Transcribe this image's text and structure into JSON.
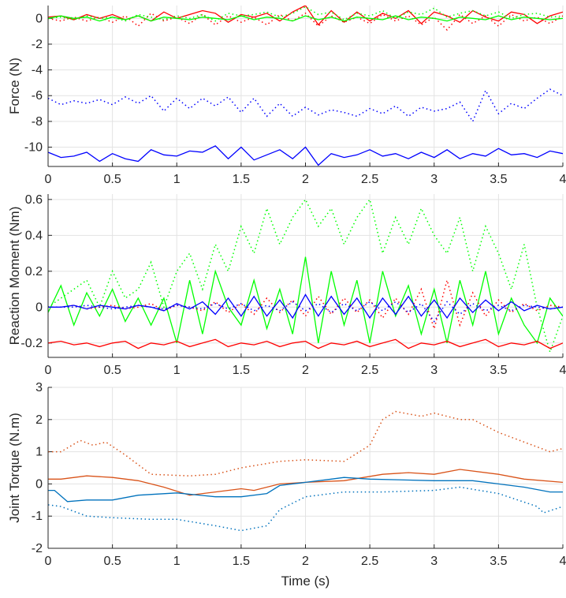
{
  "chart_data": [
    {
      "type": "line",
      "ylabel": "Force (N)",
      "xlabel": "",
      "xlim": [
        0,
        4
      ],
      "ylim": [
        -11.5,
        1
      ],
      "xticks": [
        "0",
        "0.5",
        "1",
        "1.5",
        "2",
        "2.5",
        "3",
        "3.5",
        "4"
      ],
      "yticks": [
        0,
        -2,
        -4,
        -6,
        -8,
        -10
      ],
      "yticklabels": [
        "0",
        "-2",
        "-4",
        "-6",
        "-8",
        "-10"
      ],
      "grid": true,
      "x_step": 0.1,
      "series": [
        {
          "color": "#ff0000",
          "style": "solid",
          "values": [
            0.1,
            0.2,
            -0.1,
            0.3,
            0.0,
            0.3,
            -0.1,
            0.2,
            -0.2,
            0.5,
            0.0,
            0.3,
            0.6,
            0.4,
            -0.3,
            0.3,
            0.1,
            0.4,
            -0.2,
            0.5,
            1.0,
            -0.5,
            0.6,
            -0.3,
            0.5,
            -0.2,
            0.4,
            0.0,
            0.6,
            -0.4,
            0.5,
            0.2,
            -0.3,
            0.6,
            0.1,
            -0.2,
            0.5,
            0.3,
            -0.4,
            0.2,
            0.5
          ]
        },
        {
          "color": "#ff0000",
          "style": "dotted",
          "values": [
            0.0,
            -0.2,
            0.1,
            -0.2,
            0.1,
            -0.3,
            0.2,
            -0.6,
            0.4,
            -0.2,
            0.1,
            -0.4,
            0.3,
            -0.5,
            0.2,
            -0.3,
            0.1,
            -0.5,
            0.3,
            -0.2,
            0.4,
            -0.6,
            0.2,
            -0.3,
            0.1,
            -0.4,
            0.3,
            -0.2,
            0.2,
            -0.5,
            0.1,
            -0.9,
            0.3,
            -0.4,
            0.2,
            -0.6,
            0.3,
            -0.2,
            0.1,
            -0.4,
            0.2
          ]
        },
        {
          "color": "#00ff00",
          "style": "solid",
          "values": [
            0.0,
            0.2,
            0.0,
            0.1,
            -0.2,
            0.1,
            -0.1,
            0.2,
            -0.2,
            0.1,
            0.0,
            -0.1,
            0.1,
            0.0,
            -0.1,
            0.2,
            -0.1,
            0.1,
            0.0,
            -0.2,
            0.2,
            -0.1,
            0.1,
            -0.2,
            0.1,
            0.0,
            -0.1,
            0.2,
            -0.1,
            0.1,
            0.0,
            -0.2,
            0.1,
            0.0,
            -0.1,
            0.2,
            -0.1,
            0.1,
            0.0,
            -0.1,
            0.0
          ]
        },
        {
          "color": "#00ff00",
          "style": "dotted",
          "values": [
            0.0,
            0.1,
            -0.1,
            0.2,
            0.0,
            0.1,
            -0.2,
            0.3,
            0.1,
            -0.1,
            0.2,
            0.0,
            0.3,
            -0.2,
            0.4,
            0.2,
            0.3,
            0.5,
            0.1,
            0.4,
            0.9,
            0.3,
            0.5,
            -0.1,
            0.4,
            0.2,
            0.6,
            0.0,
            0.5,
            0.3,
            0.8,
            0.1,
            0.4,
            0.6,
            0.2,
            0.5,
            0.0,
            0.3,
            0.4,
            0.1,
            0.2
          ]
        },
        {
          "color": "#0000ff",
          "style": "dotted",
          "values": [
            -6.2,
            -6.7,
            -6.4,
            -6.6,
            -6.3,
            -6.7,
            -6.1,
            -6.6,
            -6.0,
            -7.2,
            -6.2,
            -7.0,
            -6.2,
            -6.8,
            -6.1,
            -7.3,
            -6.2,
            -7.6,
            -6.6,
            -7.6,
            -6.9,
            -7.5,
            -7.1,
            -7.3,
            -7.6,
            -7.0,
            -7.4,
            -6.8,
            -7.6,
            -6.9,
            -7.2,
            -7.0,
            -6.5,
            -8.0,
            -5.6,
            -7.4,
            -6.6,
            -7.0,
            -6.2,
            -5.5,
            -6.0
          ]
        },
        {
          "color": "#0000ff",
          "style": "solid",
          "values": [
            -10.4,
            -10.8,
            -10.7,
            -10.4,
            -11.1,
            -10.5,
            -10.9,
            -11.1,
            -10.2,
            -10.6,
            -10.7,
            -10.3,
            -10.4,
            -9.9,
            -10.9,
            -10.0,
            -11.0,
            -10.6,
            -10.2,
            -10.9,
            -10.0,
            -11.4,
            -10.5,
            -10.8,
            -10.6,
            -10.2,
            -10.7,
            -10.5,
            -10.9,
            -10.4,
            -10.8,
            -10.2,
            -10.9,
            -10.5,
            -10.7,
            -10.1,
            -10.6,
            -10.5,
            -10.8,
            -10.3,
            -10.5
          ]
        }
      ]
    },
    {
      "type": "line",
      "ylabel": "Reaction Moment (Nm)",
      "xlabel": "",
      "xlim": [
        0,
        4
      ],
      "ylim": [
        -0.28,
        0.63
      ],
      "xticks": [
        "0",
        "0.5",
        "1",
        "1.5",
        "2",
        "2.5",
        "3",
        "3.5",
        "4"
      ],
      "yticks": [
        0.6,
        0.4,
        0.2,
        0,
        -0.2
      ],
      "yticklabels": [
        "0.6",
        "0.4",
        "0.2",
        "0",
        "-0.2"
      ],
      "grid": true,
      "x_step": 0.1,
      "series": [
        {
          "color": "#00ff00",
          "style": "dotted",
          "values": [
            0.0,
            0.05,
            0.1,
            0.15,
            0.0,
            0.2,
            0.05,
            0.1,
            0.25,
            0.0,
            0.2,
            0.3,
            0.1,
            0.35,
            0.2,
            0.45,
            0.3,
            0.55,
            0.35,
            0.5,
            0.6,
            0.45,
            0.55,
            0.35,
            0.5,
            0.6,
            0.3,
            0.5,
            0.35,
            0.55,
            0.4,
            0.3,
            0.5,
            0.2,
            0.45,
            0.3,
            0.1,
            0.35,
            0.0,
            -0.25,
            -0.05
          ]
        },
        {
          "color": "#00ff00",
          "style": "solid",
          "values": [
            -0.03,
            0.12,
            -0.1,
            0.08,
            -0.05,
            0.1,
            -0.08,
            0.05,
            -0.1,
            0.05,
            -0.2,
            0.15,
            -0.15,
            0.2,
            0.0,
            -0.1,
            0.15,
            -0.12,
            0.1,
            -0.15,
            0.28,
            -0.2,
            0.2,
            -0.1,
            0.15,
            -0.2,
            0.2,
            -0.05,
            0.12,
            -0.15,
            0.1,
            -0.2,
            0.15,
            -0.1,
            0.2,
            -0.15,
            0.05,
            -0.1,
            -0.2,
            0.05,
            -0.05
          ]
        },
        {
          "color": "#ff0000",
          "style": "solid",
          "values": [
            -0.2,
            -0.19,
            -0.21,
            -0.2,
            -0.22,
            -0.2,
            -0.19,
            -0.23,
            -0.2,
            -0.21,
            -0.19,
            -0.22,
            -0.2,
            -0.18,
            -0.22,
            -0.2,
            -0.21,
            -0.19,
            -0.22,
            -0.2,
            -0.19,
            -0.23,
            -0.2,
            -0.21,
            -0.19,
            -0.22,
            -0.2,
            -0.18,
            -0.23,
            -0.2,
            -0.21,
            -0.19,
            -0.22,
            -0.2,
            -0.18,
            -0.22,
            -0.2,
            -0.21,
            -0.19,
            -0.23,
            -0.2
          ]
        },
        {
          "color": "#ff0000",
          "style": "dotted",
          "values": [
            0.0,
            0.0,
            0.01,
            -0.01,
            0.0,
            0.01,
            -0.01,
            0.0,
            0.02,
            -0.02,
            0.01,
            0.0,
            -0.02,
            0.03,
            -0.03,
            0.02,
            -0.04,
            0.05,
            -0.03,
            0.04,
            -0.05,
            0.06,
            -0.04,
            0.05,
            -0.03,
            0.04,
            -0.06,
            0.05,
            -0.04,
            0.1,
            -0.12,
            0.15,
            -0.1,
            0.08,
            -0.05,
            0.04,
            -0.03,
            0.02,
            -0.02,
            0.01,
            0.0
          ]
        },
        {
          "color": "#0000ff",
          "style": "solid",
          "values": [
            0.0,
            0.0,
            0.01,
            -0.01,
            0.01,
            0.0,
            -0.01,
            0.01,
            0.0,
            -0.02,
            0.02,
            -0.01,
            0.03,
            -0.04,
            0.05,
            -0.05,
            0.06,
            -0.05,
            0.04,
            -0.06,
            0.07,
            -0.05,
            0.06,
            -0.04,
            0.05,
            -0.06,
            0.05,
            -0.04,
            0.06,
            -0.05,
            0.04,
            -0.06,
            0.05,
            -0.03,
            0.04,
            -0.02,
            0.03,
            -0.02,
            0.01,
            -0.01,
            0.0
          ]
        },
        {
          "color": "#0000ff",
          "style": "dotted",
          "values": [
            0.0,
            0.0,
            0.0,
            0.01,
            0.0,
            -0.01,
            0.0,
            0.01,
            0.0,
            -0.01,
            0.01,
            0.0,
            -0.01,
            0.02,
            -0.01,
            0.02,
            -0.02,
            0.01,
            -0.02,
            0.03,
            -0.02,
            0.02,
            -0.03,
            0.02,
            -0.02,
            0.03,
            -0.02,
            0.03,
            -0.03,
            0.02,
            -0.08,
            0.03,
            -0.04,
            0.02,
            -0.02,
            0.01,
            -0.02,
            0.01,
            0.0,
            -0.01,
            0.0
          ]
        }
      ]
    },
    {
      "type": "line",
      "ylabel": "Joint Torque (N.m)",
      "xlabel": "Time (s)",
      "xlim": [
        0,
        4
      ],
      "ylim": [
        -2,
        3
      ],
      "xticks": [
        "0",
        "0.5",
        "1",
        "1.5",
        "2",
        "2.5",
        "3",
        "3.5",
        "4"
      ],
      "yticks": [
        3,
        2,
        1,
        0,
        -1,
        -2
      ],
      "yticklabels": [
        "3",
        "2",
        "1",
        "0",
        "-1",
        "-2"
      ],
      "grid": true,
      "series": [
        {
          "color": "#d95319",
          "style": "dotted",
          "x": [
            0,
            0.1,
            0.25,
            0.35,
            0.45,
            0.6,
            0.8,
            1.1,
            1.3,
            1.5,
            1.8,
            2.0,
            2.3,
            2.5,
            2.6,
            2.7,
            2.9,
            3.0,
            3.2,
            3.3,
            3.5,
            3.7,
            3.9,
            4.0
          ],
          "values": [
            1.0,
            1.0,
            1.35,
            1.2,
            1.3,
            0.9,
            0.3,
            0.25,
            0.3,
            0.5,
            0.7,
            0.75,
            0.7,
            1.2,
            2.0,
            2.25,
            2.1,
            2.2,
            2.0,
            2.0,
            1.6,
            1.3,
            1.0,
            1.1
          ]
        },
        {
          "color": "#d95319",
          "style": "solid",
          "x": [
            0,
            0.1,
            0.3,
            0.5,
            0.7,
            0.9,
            1.1,
            1.3,
            1.5,
            1.6,
            1.8,
            2.0,
            2.3,
            2.6,
            2.8,
            3.0,
            3.2,
            3.5,
            3.7,
            4.0
          ],
          "values": [
            0.15,
            0.15,
            0.25,
            0.2,
            0.1,
            -0.1,
            -0.35,
            -0.25,
            -0.15,
            -0.2,
            0.0,
            0.05,
            0.1,
            0.3,
            0.35,
            0.3,
            0.45,
            0.3,
            0.15,
            0.05
          ]
        },
        {
          "color": "#0072bd",
          "style": "solid",
          "x": [
            0,
            0.05,
            0.15,
            0.3,
            0.5,
            0.7,
            1.0,
            1.3,
            1.5,
            1.7,
            1.8,
            2.0,
            2.2,
            2.3,
            2.5,
            3.0,
            3.3,
            3.5,
            3.7,
            3.9,
            4.0
          ],
          "values": [
            -0.2,
            -0.2,
            -0.55,
            -0.5,
            -0.5,
            -0.35,
            -0.28,
            -0.4,
            -0.4,
            -0.3,
            -0.05,
            0.05,
            0.15,
            0.2,
            0.15,
            0.1,
            0.1,
            0.0,
            -0.1,
            -0.25,
            -0.25
          ]
        },
        {
          "color": "#0072bd",
          "style": "dotted",
          "x": [
            0,
            0.1,
            0.3,
            0.5,
            0.8,
            1.0,
            1.3,
            1.5,
            1.7,
            1.8,
            2.0,
            2.3,
            2.6,
            3.0,
            3.2,
            3.5,
            3.8,
            3.85,
            4.0
          ],
          "values": [
            -0.65,
            -0.7,
            -1.0,
            -1.05,
            -1.1,
            -1.1,
            -1.3,
            -1.45,
            -1.3,
            -0.8,
            -0.4,
            -0.25,
            -0.25,
            -0.2,
            -0.1,
            -0.3,
            -0.7,
            -0.9,
            -0.7
          ]
        }
      ]
    }
  ]
}
